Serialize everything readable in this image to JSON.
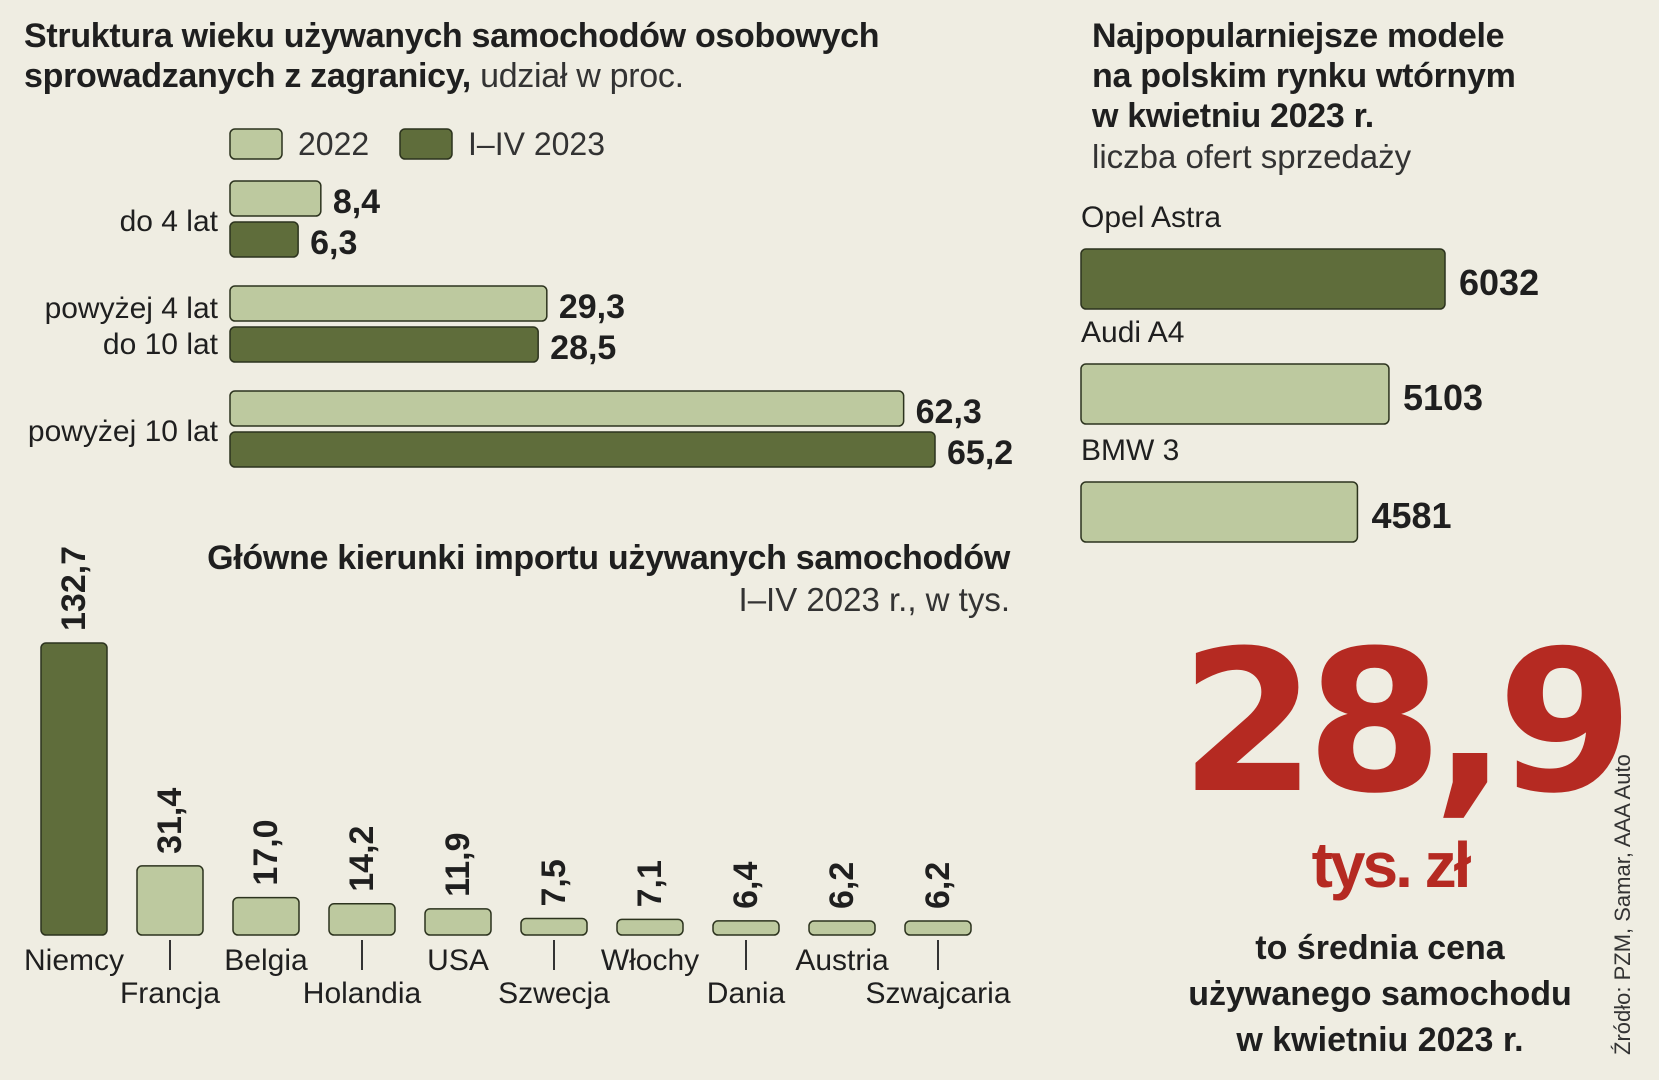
{
  "colors": {
    "light": "#bdc99f",
    "dark": "#5f6d3b",
    "outline": "#2c331e",
    "accent": "#b52a22"
  },
  "age_chart": {
    "title_bold": "Struktura wieku używanych samochodów osobowych sprowadzanych z zagranicy,",
    "title_light": "udział w proc.",
    "legend": [
      "2022",
      "I–IV 2023"
    ],
    "chart_data": {
      "type": "bar",
      "orientation": "horizontal",
      "categories": [
        "do 4 lat",
        "powyżej 4 lat do 10 lat",
        "powyżej 10 lat"
      ],
      "category_labels": [
        [
          "do 4 lat"
        ],
        [
          "powyżej 4 lat",
          "do 10 lat"
        ],
        [
          "powyżej 10 lat"
        ]
      ],
      "series": [
        {
          "name": "2022",
          "values": [
            8.4,
            29.3,
            62.3
          ],
          "labels": [
            "8,4",
            "29,3",
            "62,3"
          ]
        },
        {
          "name": "I–IV 2023",
          "values": [
            6.3,
            28.5,
            65.2
          ],
          "labels": [
            "6,3",
            "28,5",
            "65,2"
          ]
        }
      ]
    }
  },
  "models_chart": {
    "title": [
      "Najpopularniejsze modele",
      "na polskim rynku wtórnym",
      "w kwietniu 2023 r."
    ],
    "subtitle": "liczba ofert sprzedaży",
    "chart_data": {
      "type": "bar",
      "orientation": "horizontal",
      "categories": [
        "Opel Astra",
        "Audi A4",
        "BMW 3"
      ],
      "values": [
        6032,
        5103,
        4581
      ],
      "labels": [
        "6032",
        "5103",
        "4581"
      ]
    }
  },
  "import_chart": {
    "title": "Główne kierunki importu używanych samochodów",
    "subtitle": "I–IV 2023 r., w tys.",
    "chart_data": {
      "type": "bar",
      "orientation": "vertical",
      "categories": [
        "Niemcy",
        "Francja",
        "Belgia",
        "Holandia",
        "USA",
        "Szwecja",
        "Włochy",
        "Dania",
        "Austria",
        "Szwajcaria"
      ],
      "values": [
        132.7,
        31.4,
        17.0,
        14.2,
        11.9,
        7.5,
        7.1,
        6.4,
        6.2,
        6.2
      ],
      "labels": [
        "132,7",
        "31,4",
        "17,0",
        "14,2",
        "11,9",
        "7,5",
        "7,1",
        "6,4",
        "6,2",
        "6,2"
      ]
    }
  },
  "highlight": {
    "number": "28,9",
    "unit": "tys. zł",
    "caption": [
      "to średnia cena",
      "używanego samochodu",
      "w kwietniu 2023 r."
    ]
  },
  "source": "Źródło: PZM, Samar, AAA Auto"
}
